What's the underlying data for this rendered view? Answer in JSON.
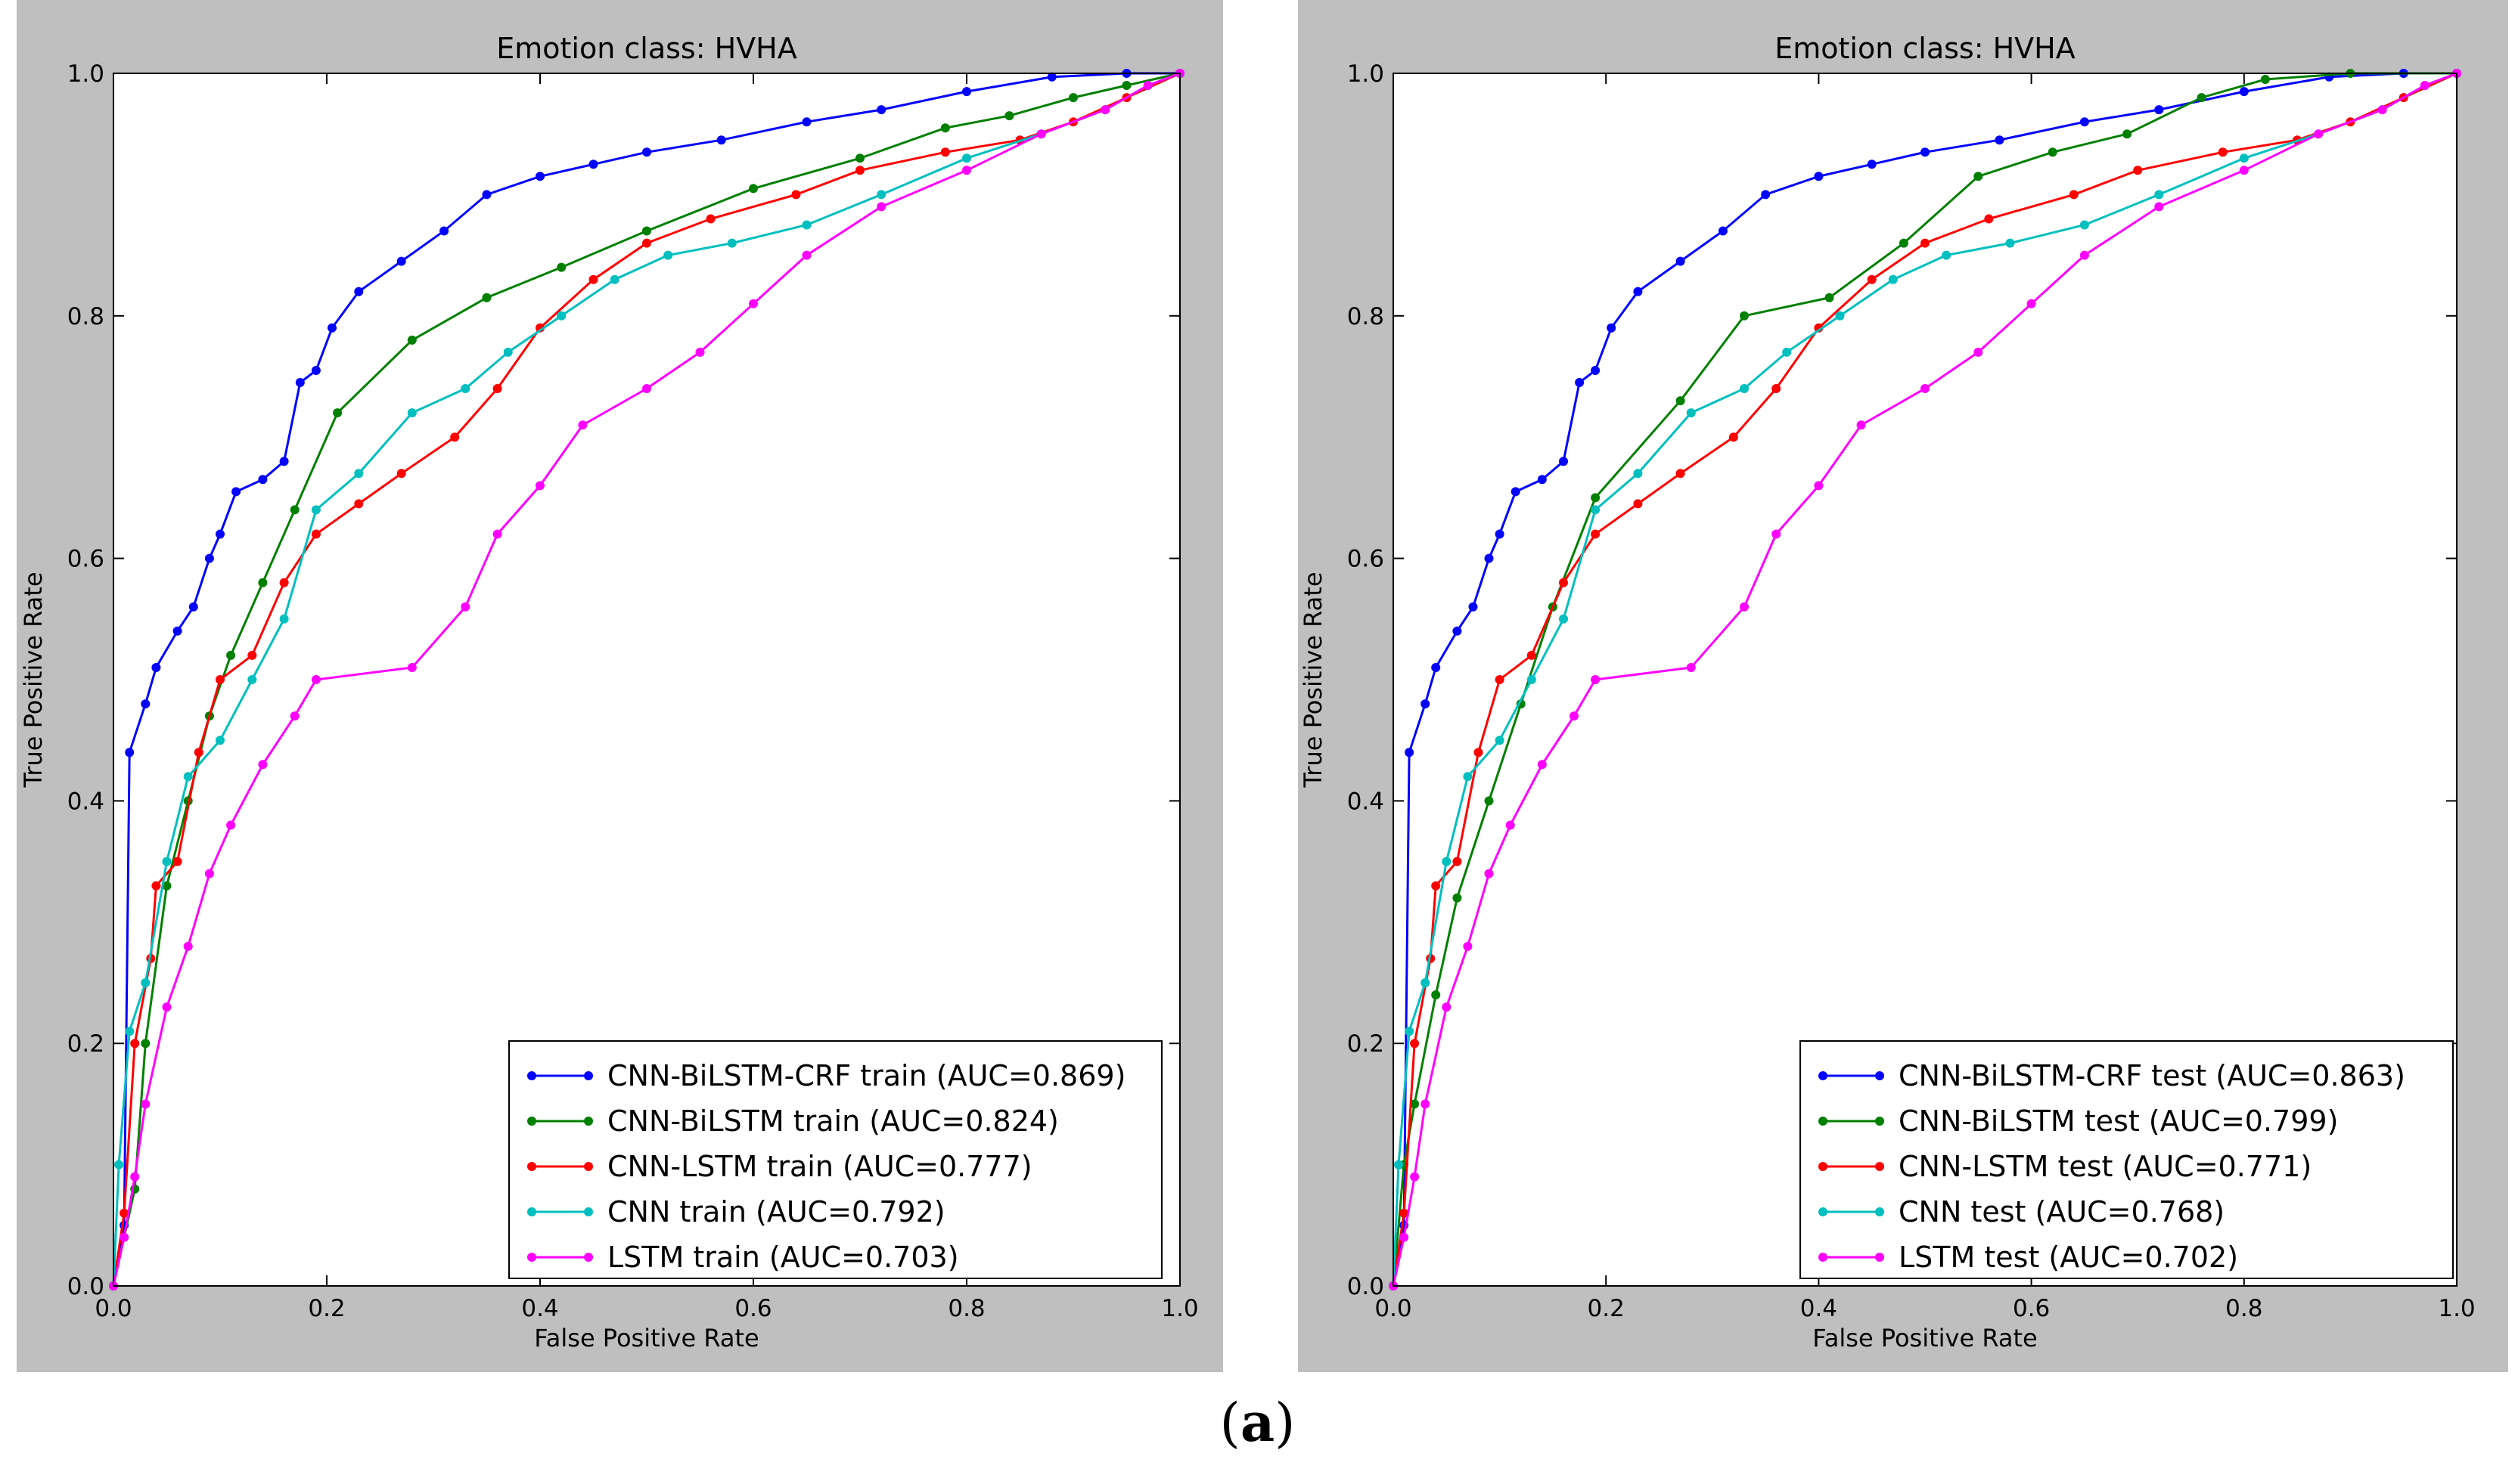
{
  "caption": {
    "open": "(",
    "letter": "a",
    "close": ")"
  },
  "colors": {
    "panel_bg": "#bfbfbf",
    "plot_bg": "#ffffff"
  },
  "chart_data": [
    {
      "type": "line",
      "title": "Emotion class: HVHA",
      "xlabel": "False Positive Rate",
      "ylabel": "True Positive Rate",
      "xlim": [
        0.0,
        1.0
      ],
      "ylim": [
        0.0,
        1.0
      ],
      "xticks": [
        "0.0",
        "0.2",
        "0.4",
        "0.6",
        "0.8",
        "1.0"
      ],
      "yticks": [
        "0.0",
        "0.2",
        "0.4",
        "0.6",
        "0.8",
        "1.0"
      ],
      "grid": false,
      "legend": "lower-right",
      "series": [
        {
          "name": "CNN-BiLSTM-CRF train (AUC=0.869)",
          "color": "#0000ff",
          "points": [
            [
              0,
              0
            ],
            [
              0.01,
              0.05
            ],
            [
              0.015,
              0.44
            ],
            [
              0.03,
              0.48
            ],
            [
              0.04,
              0.51
            ],
            [
              0.06,
              0.54
            ],
            [
              0.075,
              0.56
            ],
            [
              0.09,
              0.6
            ],
            [
              0.1,
              0.62
            ],
            [
              0.115,
              0.655
            ],
            [
              0.14,
              0.665
            ],
            [
              0.16,
              0.68
            ],
            [
              0.175,
              0.745
            ],
            [
              0.19,
              0.755
            ],
            [
              0.205,
              0.79
            ],
            [
              0.23,
              0.82
            ],
            [
              0.27,
              0.845
            ],
            [
              0.31,
              0.87
            ],
            [
              0.35,
              0.9
            ],
            [
              0.4,
              0.915
            ],
            [
              0.45,
              0.925
            ],
            [
              0.5,
              0.935
            ],
            [
              0.57,
              0.945
            ],
            [
              0.65,
              0.96
            ],
            [
              0.72,
              0.97
            ],
            [
              0.8,
              0.985
            ],
            [
              0.88,
              0.997
            ],
            [
              0.95,
              1.0
            ],
            [
              1.0,
              1.0
            ]
          ]
        },
        {
          "name": "CNN-BiLSTM train (AUC=0.824)",
          "color": "#008000",
          "points": [
            [
              0,
              0
            ],
            [
              0.01,
              0.04
            ],
            [
              0.02,
              0.08
            ],
            [
              0.03,
              0.2
            ],
            [
              0.05,
              0.33
            ],
            [
              0.07,
              0.4
            ],
            [
              0.09,
              0.47
            ],
            [
              0.11,
              0.52
            ],
            [
              0.14,
              0.58
            ],
            [
              0.17,
              0.64
            ],
            [
              0.21,
              0.72
            ],
            [
              0.28,
              0.78
            ],
            [
              0.35,
              0.815
            ],
            [
              0.42,
              0.84
            ],
            [
              0.5,
              0.87
            ],
            [
              0.6,
              0.905
            ],
            [
              0.7,
              0.93
            ],
            [
              0.78,
              0.955
            ],
            [
              0.84,
              0.965
            ],
            [
              0.9,
              0.98
            ],
            [
              0.95,
              0.99
            ],
            [
              1.0,
              1.0
            ]
          ]
        },
        {
          "name": "CNN-LSTM train (AUC=0.777)",
          "color": "#ff0000",
          "points": [
            [
              0,
              0
            ],
            [
              0.01,
              0.06
            ],
            [
              0.02,
              0.2
            ],
            [
              0.035,
              0.27
            ],
            [
              0.04,
              0.33
            ],
            [
              0.06,
              0.35
            ],
            [
              0.08,
              0.44
            ],
            [
              0.1,
              0.5
            ],
            [
              0.13,
              0.52
            ],
            [
              0.16,
              0.58
            ],
            [
              0.19,
              0.62
            ],
            [
              0.23,
              0.645
            ],
            [
              0.27,
              0.67
            ],
            [
              0.32,
              0.7
            ],
            [
              0.36,
              0.74
            ],
            [
              0.4,
              0.79
            ],
            [
              0.45,
              0.83
            ],
            [
              0.5,
              0.86
            ],
            [
              0.56,
              0.88
            ],
            [
              0.64,
              0.9
            ],
            [
              0.7,
              0.92
            ],
            [
              0.78,
              0.935
            ],
            [
              0.85,
              0.945
            ],
            [
              0.9,
              0.96
            ],
            [
              0.95,
              0.98
            ],
            [
              1.0,
              1.0
            ]
          ]
        },
        {
          "name": "CNN train (AUC=0.792)",
          "color": "#00bfbf",
          "points": [
            [
              0,
              0
            ],
            [
              0.005,
              0.1
            ],
            [
              0.015,
              0.21
            ],
            [
              0.03,
              0.25
            ],
            [
              0.05,
              0.35
            ],
            [
              0.07,
              0.42
            ],
            [
              0.1,
              0.45
            ],
            [
              0.13,
              0.5
            ],
            [
              0.16,
              0.55
            ],
            [
              0.19,
              0.64
            ],
            [
              0.23,
              0.67
            ],
            [
              0.28,
              0.72
            ],
            [
              0.33,
              0.74
            ],
            [
              0.37,
              0.77
            ],
            [
              0.42,
              0.8
            ],
            [
              0.47,
              0.83
            ],
            [
              0.52,
              0.85
            ],
            [
              0.58,
              0.86
            ],
            [
              0.65,
              0.875
            ],
            [
              0.72,
              0.9
            ],
            [
              0.8,
              0.93
            ],
            [
              0.87,
              0.95
            ],
            [
              0.93,
              0.97
            ],
            [
              0.97,
              0.99
            ],
            [
              1.0,
              1.0
            ]
          ]
        },
        {
          "name": "LSTM train (AUC=0.703)",
          "color": "#ff00ff",
          "points": [
            [
              0,
              0
            ],
            [
              0.01,
              0.04
            ],
            [
              0.02,
              0.09
            ],
            [
              0.03,
              0.15
            ],
            [
              0.05,
              0.23
            ],
            [
              0.07,
              0.28
            ],
            [
              0.09,
              0.34
            ],
            [
              0.11,
              0.38
            ],
            [
              0.14,
              0.43
            ],
            [
              0.17,
              0.47
            ],
            [
              0.19,
              0.5
            ],
            [
              0.28,
              0.51
            ],
            [
              0.33,
              0.56
            ],
            [
              0.36,
              0.62
            ],
            [
              0.4,
              0.66
            ],
            [
              0.44,
              0.71
            ],
            [
              0.5,
              0.74
            ],
            [
              0.55,
              0.77
            ],
            [
              0.6,
              0.81
            ],
            [
              0.65,
              0.85
            ],
            [
              0.72,
              0.89
            ],
            [
              0.8,
              0.92
            ],
            [
              0.87,
              0.95
            ],
            [
              0.93,
              0.97
            ],
            [
              0.97,
              0.99
            ],
            [
              1.0,
              1.0
            ]
          ]
        }
      ]
    },
    {
      "type": "line",
      "title": "Emotion class: HVHA",
      "xlabel": "False Positive Rate",
      "ylabel": "True Positive Rate",
      "xlim": [
        0.0,
        1.0
      ],
      "ylim": [
        0.0,
        1.0
      ],
      "xticks": [
        "0.0",
        "0.2",
        "0.4",
        "0.6",
        "0.8",
        "1.0"
      ],
      "yticks": [
        "0.0",
        "0.2",
        "0.4",
        "0.6",
        "0.8",
        "1.0"
      ],
      "grid": false,
      "legend": "lower-right",
      "series": [
        {
          "name": "CNN-BiLSTM-CRF test (AUC=0.863)",
          "color": "#0000ff",
          "points": [
            [
              0,
              0
            ],
            [
              0.01,
              0.05
            ],
            [
              0.015,
              0.44
            ],
            [
              0.03,
              0.48
            ],
            [
              0.04,
              0.51
            ],
            [
              0.06,
              0.54
            ],
            [
              0.075,
              0.56
            ],
            [
              0.09,
              0.6
            ],
            [
              0.1,
              0.62
            ],
            [
              0.115,
              0.655
            ],
            [
              0.14,
              0.665
            ],
            [
              0.16,
              0.68
            ],
            [
              0.175,
              0.745
            ],
            [
              0.19,
              0.755
            ],
            [
              0.205,
              0.79
            ],
            [
              0.23,
              0.82
            ],
            [
              0.27,
              0.845
            ],
            [
              0.31,
              0.87
            ],
            [
              0.35,
              0.9
            ],
            [
              0.4,
              0.915
            ],
            [
              0.45,
              0.925
            ],
            [
              0.5,
              0.935
            ],
            [
              0.57,
              0.945
            ],
            [
              0.65,
              0.96
            ],
            [
              0.72,
              0.97
            ],
            [
              0.8,
              0.985
            ],
            [
              0.88,
              0.997
            ],
            [
              0.95,
              1.0
            ],
            [
              1.0,
              1.0
            ]
          ]
        },
        {
          "name": "CNN-BiLSTM test (AUC=0.799)",
          "color": "#008000",
          "points": [
            [
              0,
              0
            ],
            [
              0.01,
              0.1
            ],
            [
              0.02,
              0.15
            ],
            [
              0.04,
              0.24
            ],
            [
              0.06,
              0.32
            ],
            [
              0.09,
              0.4
            ],
            [
              0.12,
              0.48
            ],
            [
              0.15,
              0.56
            ],
            [
              0.19,
              0.65
            ],
            [
              0.27,
              0.73
            ],
            [
              0.33,
              0.8
            ],
            [
              0.41,
              0.815
            ],
            [
              0.48,
              0.86
            ],
            [
              0.55,
              0.915
            ],
            [
              0.62,
              0.935
            ],
            [
              0.69,
              0.95
            ],
            [
              0.76,
              0.98
            ],
            [
              0.82,
              0.995
            ],
            [
              0.9,
              1.0
            ],
            [
              1.0,
              1.0
            ]
          ]
        },
        {
          "name": "CNN-LSTM test (AUC=0.771)",
          "color": "#ff0000",
          "points": [
            [
              0,
              0
            ],
            [
              0.01,
              0.06
            ],
            [
              0.02,
              0.2
            ],
            [
              0.035,
              0.27
            ],
            [
              0.04,
              0.33
            ],
            [
              0.06,
              0.35
            ],
            [
              0.08,
              0.44
            ],
            [
              0.1,
              0.5
            ],
            [
              0.13,
              0.52
            ],
            [
              0.16,
              0.58
            ],
            [
              0.19,
              0.62
            ],
            [
              0.23,
              0.645
            ],
            [
              0.27,
              0.67
            ],
            [
              0.32,
              0.7
            ],
            [
              0.36,
              0.74
            ],
            [
              0.4,
              0.79
            ],
            [
              0.45,
              0.83
            ],
            [
              0.5,
              0.86
            ],
            [
              0.56,
              0.88
            ],
            [
              0.64,
              0.9
            ],
            [
              0.7,
              0.92
            ],
            [
              0.78,
              0.935
            ],
            [
              0.85,
              0.945
            ],
            [
              0.9,
              0.96
            ],
            [
              0.95,
              0.98
            ],
            [
              1.0,
              1.0
            ]
          ]
        },
        {
          "name": "CNN test (AUC=0.768)",
          "color": "#00bfbf",
          "points": [
            [
              0,
              0
            ],
            [
              0.005,
              0.1
            ],
            [
              0.015,
              0.21
            ],
            [
              0.03,
              0.25
            ],
            [
              0.05,
              0.35
            ],
            [
              0.07,
              0.42
            ],
            [
              0.1,
              0.45
            ],
            [
              0.13,
              0.5
            ],
            [
              0.16,
              0.55
            ],
            [
              0.19,
              0.64
            ],
            [
              0.23,
              0.67
            ],
            [
              0.28,
              0.72
            ],
            [
              0.33,
              0.74
            ],
            [
              0.37,
              0.77
            ],
            [
              0.42,
              0.8
            ],
            [
              0.47,
              0.83
            ],
            [
              0.52,
              0.85
            ],
            [
              0.58,
              0.86
            ],
            [
              0.65,
              0.875
            ],
            [
              0.72,
              0.9
            ],
            [
              0.8,
              0.93
            ],
            [
              0.87,
              0.95
            ],
            [
              0.93,
              0.97
            ],
            [
              0.97,
              0.99
            ],
            [
              1.0,
              1.0
            ]
          ]
        },
        {
          "name": "LSTM test (AUC=0.702)",
          "color": "#ff00ff",
          "points": [
            [
              0,
              0
            ],
            [
              0.01,
              0.04
            ],
            [
              0.02,
              0.09
            ],
            [
              0.03,
              0.15
            ],
            [
              0.05,
              0.23
            ],
            [
              0.07,
              0.28
            ],
            [
              0.09,
              0.34
            ],
            [
              0.11,
              0.38
            ],
            [
              0.14,
              0.43
            ],
            [
              0.17,
              0.47
            ],
            [
              0.19,
              0.5
            ],
            [
              0.28,
              0.51
            ],
            [
              0.33,
              0.56
            ],
            [
              0.36,
              0.62
            ],
            [
              0.4,
              0.66
            ],
            [
              0.44,
              0.71
            ],
            [
              0.5,
              0.74
            ],
            [
              0.55,
              0.77
            ],
            [
              0.6,
              0.81
            ],
            [
              0.65,
              0.85
            ],
            [
              0.72,
              0.89
            ],
            [
              0.8,
              0.92
            ],
            [
              0.87,
              0.95
            ],
            [
              0.93,
              0.97
            ],
            [
              0.97,
              0.99
            ],
            [
              1.0,
              1.0
            ]
          ]
        }
      ]
    }
  ]
}
